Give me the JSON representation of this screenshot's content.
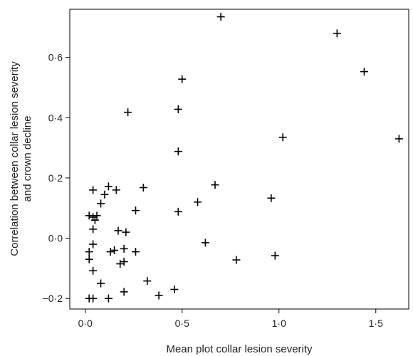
{
  "chart_data": {
    "type": "scatter",
    "title": "",
    "xlabel": "Mean plot collar lesion severity",
    "ylabel_lines": [
      "Correlation between collar lesion severity",
      "and crown decline"
    ],
    "xlim": [
      -0.08,
      1.67
    ],
    "ylim": [
      -0.235,
      0.76
    ],
    "xticks": [
      0,
      0.5,
      1.0,
      1.5
    ],
    "xtick_labels": [
      "0·0",
      "0·5",
      "1·0",
      "1·5"
    ],
    "yticks": [
      -0.2,
      0,
      0.2,
      0.4,
      0.6
    ],
    "ytick_labels": [
      "−0·2",
      "0·0",
      "0·2",
      "0·4",
      "0·6"
    ],
    "grid": false,
    "marker": "plus",
    "color": "#000000",
    "points": [
      {
        "x": 0.7,
        "y": 0.735
      },
      {
        "x": 1.3,
        "y": 0.68
      },
      {
        "x": 1.44,
        "y": 0.553
      },
      {
        "x": 1.62,
        "y": 0.33
      },
      {
        "x": 1.02,
        "y": 0.335
      },
      {
        "x": 0.5,
        "y": 0.528
      },
      {
        "x": 0.48,
        "y": 0.428
      },
      {
        "x": 0.22,
        "y": 0.418
      },
      {
        "x": 0.48,
        "y": 0.288
      },
      {
        "x": 0.67,
        "y": 0.177
      },
      {
        "x": 0.3,
        "y": 0.168
      },
      {
        "x": 0.58,
        "y": 0.12
      },
      {
        "x": 0.48,
        "y": 0.088
      },
      {
        "x": 0.96,
        "y": 0.133
      },
      {
        "x": 0.26,
        "y": 0.092
      },
      {
        "x": 0.12,
        "y": 0.172
      },
      {
        "x": 0.16,
        "y": 0.16
      },
      {
        "x": 0.1,
        "y": 0.145
      },
      {
        "x": 0.04,
        "y": 0.16
      },
      {
        "x": 0.08,
        "y": 0.115
      },
      {
        "x": 0.02,
        "y": 0.075
      },
      {
        "x": 0.05,
        "y": 0.06
      },
      {
        "x": 0.06,
        "y": 0.075
      },
      {
        "x": 0.04,
        "y": 0.07
      },
      {
        "x": 0.04,
        "y": 0.03
      },
      {
        "x": 0.17,
        "y": 0.025
      },
      {
        "x": 0.21,
        "y": 0.02
      },
      {
        "x": 0.15,
        "y": -0.04
      },
      {
        "x": 0.13,
        "y": -0.045
      },
      {
        "x": 0.2,
        "y": -0.035
      },
      {
        "x": 0.26,
        "y": -0.045
      },
      {
        "x": 0.62,
        "y": -0.015
      },
      {
        "x": 0.04,
        "y": -0.02
      },
      {
        "x": 0.02,
        "y": -0.045
      },
      {
        "x": 0.02,
        "y": -0.07
      },
      {
        "x": 0.2,
        "y": -0.078
      },
      {
        "x": 0.18,
        "y": -0.085
      },
      {
        "x": 0.78,
        "y": -0.072
      },
      {
        "x": 0.98,
        "y": -0.058
      },
      {
        "x": 0.04,
        "y": -0.108
      },
      {
        "x": 0.08,
        "y": -0.15
      },
      {
        "x": 0.32,
        "y": -0.142
      },
      {
        "x": 0.2,
        "y": -0.178
      },
      {
        "x": 0.46,
        "y": -0.17
      },
      {
        "x": 0.38,
        "y": -0.19
      },
      {
        "x": 0.12,
        "y": -0.2
      },
      {
        "x": 0.02,
        "y": -0.2
      },
      {
        "x": 0.04,
        "y": -0.2
      }
    ]
  }
}
